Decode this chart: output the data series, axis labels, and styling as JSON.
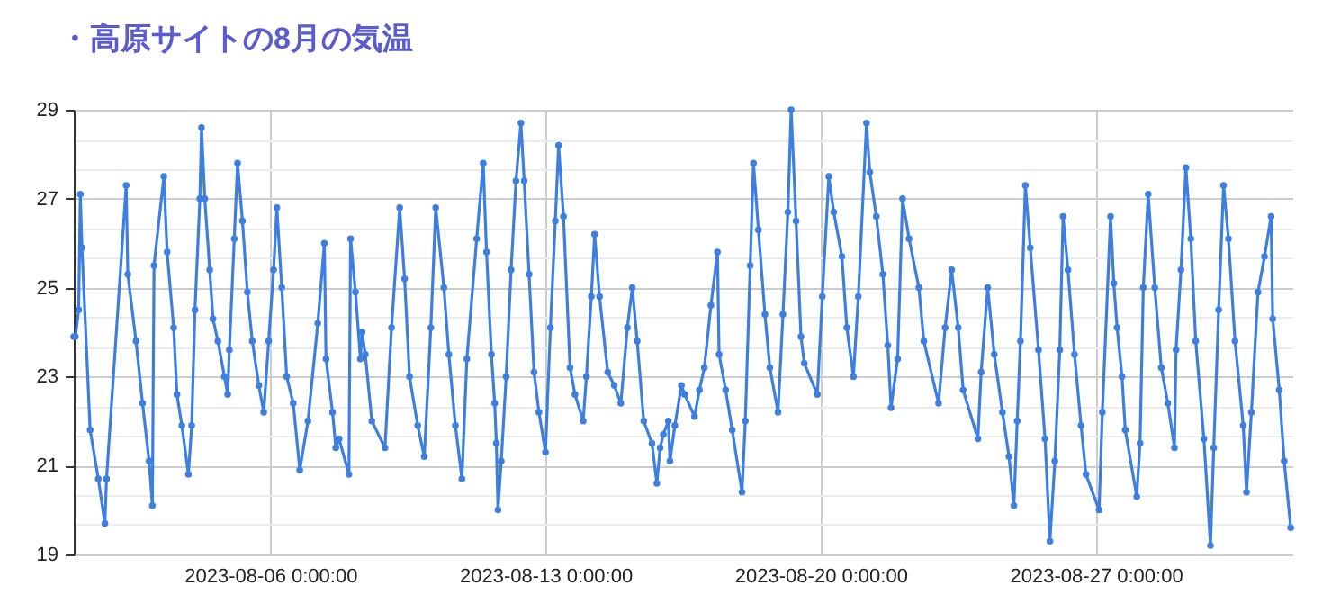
{
  "chart_data": {
    "type": "line",
    "title": "・高原サイトの8月の気温",
    "marker": "circle",
    "grid": true,
    "xlim": [
      "2023-08-01T00:00",
      "2023-09-01T00:00"
    ],
    "xticks": [
      {
        "value": "2023-08-06",
        "label": "2023-08-06 0:00:00"
      },
      {
        "value": "2023-08-13",
        "label": "2023-08-13 0:00:00"
      },
      {
        "value": "2023-08-20",
        "label": "2023-08-20 0:00:00"
      },
      {
        "value": "2023-08-27",
        "label": "2023-08-27 0:00:00"
      }
    ],
    "ylim": [
      19,
      29
    ],
    "yticks": [
      19,
      {
        "value": 19.67,
        "label": null
      },
      {
        "value": 20.33,
        "label": null
      },
      21,
      {
        "value": 21.67,
        "label": null
      },
      {
        "value": 22.33,
        "label": null
      },
      23,
      {
        "value": 23.67,
        "label": null
      },
      {
        "value": 24.33,
        "label": null
      },
      25,
      {
        "value": 25.67,
        "label": null
      },
      {
        "value": 26.33,
        "label": null
      },
      27,
      {
        "value": 27.67,
        "label": null
      },
      {
        "value": 28.33,
        "label": null
      },
      29
    ],
    "x": [
      "2023-08-01T00:00",
      "2023-08-01T01:00",
      "2023-08-01T03:00",
      "2023-08-01T04:00",
      "2023-08-01T05:00",
      "2023-08-01T10:00",
      "2023-08-01T15:00",
      "2023-08-01T19:00",
      "2023-08-01T20:00",
      "2023-08-02T08:00",
      "2023-08-02T09:00",
      "2023-08-02T14:00",
      "2023-08-02T18:00",
      "2023-08-02T22:00",
      "2023-08-03T00:00",
      "2023-08-03T01:00",
      "2023-08-03T07:00",
      "2023-08-03T09:00",
      "2023-08-03T13:00",
      "2023-08-03T15:00",
      "2023-08-03T18:00",
      "2023-08-03T22:00",
      "2023-08-04T00:00",
      "2023-08-04T02:00",
      "2023-08-04T05:00",
      "2023-08-04T06:00",
      "2023-08-04T08:00",
      "2023-08-04T11:00",
      "2023-08-04T13:00",
      "2023-08-04T16:00",
      "2023-08-04T20:00",
      "2023-08-04T22:00",
      "2023-08-04T23:00",
      "2023-08-05T02:00",
      "2023-08-05T04:00",
      "2023-08-05T07:00",
      "2023-08-05T10:00",
      "2023-08-05T13:00",
      "2023-08-05T17:00",
      "2023-08-05T20:00",
      "2023-08-05T23:00",
      "2023-08-06T02:00",
      "2023-08-06T04:00",
      "2023-08-06T07:00",
      "2023-08-06T10:00",
      "2023-08-06T14:00",
      "2023-08-06T18:00",
      "2023-08-06T23:00",
      "2023-08-07T05:00",
      "2023-08-07T09:00",
      "2023-08-07T10:00",
      "2023-08-07T14:00",
      "2023-08-07T16:00",
      "2023-08-07T18:00",
      "2023-08-08T00:00",
      "2023-08-08T01:00",
      "2023-08-08T04:00",
      "2023-08-08T07:00",
      "2023-08-08T08:00",
      "2023-08-08T10:00",
      "2023-08-08T14:00",
      "2023-08-08T22:00",
      "2023-08-09T02:00",
      "2023-08-09T07:00",
      "2023-08-09T10:00",
      "2023-08-09T13:00",
      "2023-08-09T18:00",
      "2023-08-09T22:00",
      "2023-08-10T02:00",
      "2023-08-10T05:00",
      "2023-08-10T10:00",
      "2023-08-10T13:00",
      "2023-08-10T17:00",
      "2023-08-10T21:00",
      "2023-08-11T00:00",
      "2023-08-11T06:00",
      "2023-08-11T10:00",
      "2023-08-11T12:00",
      "2023-08-11T15:00",
      "2023-08-11T17:00",
      "2023-08-11T18:00",
      "2023-08-11T19:00",
      "2023-08-11T21:00",
      "2023-08-12T00:00",
      "2023-08-12T03:00",
      "2023-08-12T06:00",
      "2023-08-12T09:00",
      "2023-08-12T11:00",
      "2023-08-12T14:00",
      "2023-08-12T17:00",
      "2023-08-12T20:00",
      "2023-08-13T00:00",
      "2023-08-13T03:00",
      "2023-08-13T06:00",
      "2023-08-13T08:00",
      "2023-08-13T11:00",
      "2023-08-13T15:00",
      "2023-08-13T18:00",
      "2023-08-13T23:00",
      "2023-08-14T01:00",
      "2023-08-14T04:00",
      "2023-08-14T06:00",
      "2023-08-14T09:00",
      "2023-08-14T14:00",
      "2023-08-14T18:00",
      "2023-08-14T22:00",
      "2023-08-15T02:00",
      "2023-08-15T05:00",
      "2023-08-15T08:00",
      "2023-08-15T12:00",
      "2023-08-15T17:00",
      "2023-08-15T20:00",
      "2023-08-15T22:00",
      "2023-08-16T00:00",
      "2023-08-16T03:00",
      "2023-08-16T04:00",
      "2023-08-16T07:00",
      "2023-08-16T11:00",
      "2023-08-16T13:00",
      "2023-08-16T19:00",
      "2023-08-16T22:00",
      "2023-08-17T01:00",
      "2023-08-17T05:00",
      "2023-08-17T09:00",
      "2023-08-17T10:00",
      "2023-08-17T14:00",
      "2023-08-17T18:00",
      "2023-08-18T00:00",
      "2023-08-18T02:00",
      "2023-08-18T05:00",
      "2023-08-18T07:00",
      "2023-08-18T10:00",
      "2023-08-18T14:00",
      "2023-08-18T17:00",
      "2023-08-18T22:00",
      "2023-08-19T01:00",
      "2023-08-19T04:00",
      "2023-08-19T06:00",
      "2023-08-19T09:00",
      "2023-08-19T12:00",
      "2023-08-19T14:00",
      "2023-08-19T22:00",
      "2023-08-20T01:00",
      "2023-08-20T05:00",
      "2023-08-20T08:00",
      "2023-08-20T13:00",
      "2023-08-20T16:00",
      "2023-08-20T20:00",
      "2023-08-20T23:00",
      "2023-08-21T04:00",
      "2023-08-21T06:00",
      "2023-08-21T10:00",
      "2023-08-21T14:00",
      "2023-08-21T17:00",
      "2023-08-21T19:00",
      "2023-08-21T23:00",
      "2023-08-22T02:00",
      "2023-08-22T06:00",
      "2023-08-22T12:00",
      "2023-08-22T15:00",
      "2023-08-23T00:00",
      "2023-08-23T04:00",
      "2023-08-23T08:00",
      "2023-08-23T12:00",
      "2023-08-23T15:00",
      "2023-08-24T00:00",
      "2023-08-24T02:00",
      "2023-08-24T06:00",
      "2023-08-24T10:00",
      "2023-08-24T15:00",
      "2023-08-24T19:00",
      "2023-08-24T22:00",
      "2023-08-25T00:00",
      "2023-08-25T02:00",
      "2023-08-25T05:00",
      "2023-08-25T08:00",
      "2023-08-25T13:00",
      "2023-08-25T17:00",
      "2023-08-25T20:00",
      "2023-08-25T23:00",
      "2023-08-26T02:00",
      "2023-08-26T04:00",
      "2023-08-26T07:00",
      "2023-08-26T11:00",
      "2023-08-26T15:00",
      "2023-08-26T18:00",
      "2023-08-27T02:00",
      "2023-08-27T04:00",
      "2023-08-27T09:00",
      "2023-08-27T11:00",
      "2023-08-27T13:00",
      "2023-08-27T16:00",
      "2023-08-27T18:00",
      "2023-08-28T01:00",
      "2023-08-28T03:00",
      "2023-08-28T05:00",
      "2023-08-28T08:00",
      "2023-08-28T12:00",
      "2023-08-28T16:00",
      "2023-08-28T20:00",
      "2023-08-29T00:00",
      "2023-08-29T01:00",
      "2023-08-29T04:00",
      "2023-08-29T07:00",
      "2023-08-29T10:00",
      "2023-08-29T13:00",
      "2023-08-29T18:00",
      "2023-08-29T22:00",
      "2023-08-30T00:00",
      "2023-08-30T03:00",
      "2023-08-30T06:00",
      "2023-08-30T09:00",
      "2023-08-30T13:00",
      "2023-08-30T18:00",
      "2023-08-30T20:00",
      "2023-08-30T23:00",
      "2023-08-31T03:00",
      "2023-08-31T07:00",
      "2023-08-31T11:00",
      "2023-08-31T12:00",
      "2023-08-31T16:00",
      "2023-08-31T19:00",
      "2023-08-31T23:00"
    ],
    "series": [
      {
        "color": "#3d7fe0",
        "values": [
          23.9,
          23.9,
          24.5,
          27.1,
          25.9,
          21.8,
          20.7,
          19.7,
          20.7,
          27.3,
          25.3,
          23.8,
          22.4,
          21.1,
          20.1,
          25.5,
          27.5,
          25.8,
          24.1,
          22.6,
          21.9,
          20.8,
          21.9,
          24.5,
          27.0,
          28.6,
          27.0,
          25.4,
          24.3,
          23.8,
          23.0,
          22.6,
          23.6,
          26.1,
          27.8,
          26.5,
          24.9,
          23.8,
          22.8,
          22.2,
          23.8,
          25.4,
          26.8,
          25.0,
          23.0,
          22.4,
          20.9,
          22.0,
          24.2,
          26.0,
          23.4,
          22.2,
          21.4,
          21.6,
          20.8,
          26.1,
          24.9,
          23.4,
          24.0,
          23.5,
          22.0,
          21.4,
          24.1,
          26.8,
          25.2,
          23.0,
          21.9,
          21.2,
          24.1,
          26.8,
          25.0,
          23.5,
          21.9,
          20.7,
          23.4,
          26.1,
          27.8,
          25.8,
          23.5,
          22.4,
          21.5,
          20.0,
          21.1,
          23.0,
          25.4,
          27.4,
          28.7,
          27.4,
          25.3,
          23.1,
          22.2,
          21.3,
          24.1,
          26.5,
          28.2,
          26.6,
          23.2,
          22.6,
          22.0,
          23.0,
          24.8,
          26.2,
          24.8,
          23.1,
          22.8,
          22.4,
          24.1,
          25.0,
          23.8,
          22.0,
          21.5,
          20.6,
          21.4,
          21.7,
          22.0,
          21.1,
          21.9,
          22.8,
          22.6,
          22.1,
          22.7,
          23.2,
          24.6,
          25.8,
          23.5,
          22.7,
          21.8,
          20.4,
          22.0,
          25.5,
          27.8,
          26.3,
          24.4,
          23.2,
          22.2,
          24.4,
          26.7,
          29.0,
          26.5,
          23.9,
          23.3,
          22.6,
          24.8,
          27.5,
          26.7,
          25.7,
          24.1,
          23.0,
          24.8,
          28.7,
          27.6,
          26.6,
          25.3,
          23.7,
          22.3,
          23.4,
          27.0,
          26.1,
          25.0,
          23.8,
          22.4,
          24.1,
          25.4,
          24.1,
          22.7,
          21.6,
          23.1,
          25.0,
          23.5,
          22.2,
          21.2,
          20.1,
          22.0,
          23.8,
          27.3,
          25.9,
          23.6,
          21.6,
          19.3,
          21.1,
          23.6,
          26.6,
          25.4,
          23.5,
          21.9,
          20.8,
          20.0,
          22.2,
          26.6,
          25.1,
          24.1,
          23.0,
          21.8,
          20.3,
          21.5,
          25.0,
          27.1,
          25.0,
          23.2,
          22.4,
          21.4,
          23.6,
          25.4,
          27.7,
          26.1,
          23.8,
          21.6,
          19.2,
          21.4,
          24.5,
          27.3,
          26.1,
          23.8,
          21.9,
          20.4,
          22.2,
          24.9,
          25.7,
          26.6,
          24.3,
          22.7,
          21.1,
          19.6
        ]
      }
    ]
  }
}
